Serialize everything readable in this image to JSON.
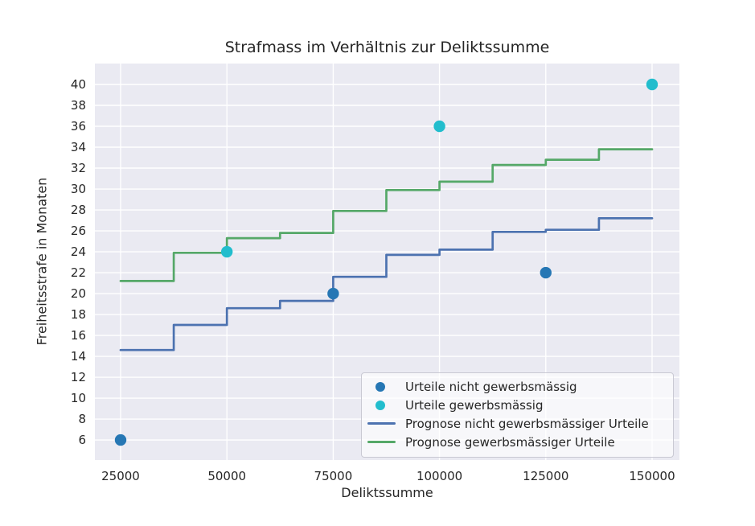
{
  "figure": {
    "background": "#ffffff",
    "plot_background": "#eaeaf2",
    "grid_color": "#ffffff",
    "text_color": "#262626"
  },
  "chart_data": {
    "type": "scatter",
    "title": "Strafmass im Verhältnis zur Deliktssumme",
    "xlabel": "Deliktssumme",
    "ylabel": "Freiheitsstrafe in Monaten",
    "xlim": [
      18950,
      156430
    ],
    "ylim": [
      4.08,
      42.0
    ],
    "xticks": [
      25000,
      50000,
      75000,
      100000,
      125000,
      150000
    ],
    "yticks": [
      6,
      8,
      10,
      12,
      14,
      16,
      18,
      20,
      22,
      24,
      26,
      28,
      30,
      32,
      34,
      36,
      38,
      40
    ],
    "grid": true,
    "legend_position": "lower right",
    "scatter_series": [
      {
        "name": "Urteile nicht gewerbsmässig",
        "color": "#2677b4",
        "marker": "circle",
        "points": [
          [
            25000,
            6
          ],
          [
            75000,
            20
          ],
          [
            125000,
            22
          ]
        ]
      },
      {
        "name": "Urteile gewerbsmässig",
        "color": "#22bdcd",
        "marker": "circle",
        "points": [
          [
            50000,
            24
          ],
          [
            100000,
            36
          ],
          [
            150000,
            40
          ]
        ]
      }
    ],
    "step_series": [
      {
        "name": "Prognose nicht gewerbsmässiger Urteile",
        "color": "#4c72b0",
        "x_bounds": [
          25000,
          37500,
          50000,
          62500,
          75000,
          87500,
          100000,
          112500,
          125000,
          137500,
          150000
        ],
        "values": [
          14.6,
          17.0,
          18.6,
          19.3,
          21.6,
          23.7,
          24.2,
          25.9,
          26.1,
          27.2
        ]
      },
      {
        "name": "Prognose gewerbsmässiger Urteile",
        "color": "#55a868",
        "x_bounds": [
          25000,
          37500,
          50000,
          62500,
          75000,
          87500,
          100000,
          112500,
          125000,
          137500,
          150000
        ],
        "values": [
          21.2,
          23.9,
          25.3,
          25.8,
          27.9,
          29.9,
          30.7,
          32.3,
          32.8,
          33.8
        ]
      }
    ]
  }
}
